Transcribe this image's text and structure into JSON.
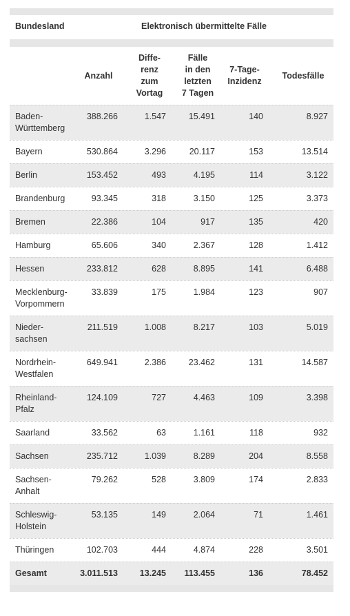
{
  "header": {
    "title_col": "Bundesland",
    "group": "Elektronisch übermittelte Fälle",
    "columns": [
      "Anzahl",
      "Diffe-\nrenz\nzum\nVortag",
      "Fälle\nin den\nletzten\n7 Tagen",
      "7-Tage-\nInzidenz",
      "Todesfälle"
    ]
  },
  "rows": [
    {
      "name": "Baden-\nWürttemberg",
      "values": [
        "388.266",
        "1.547",
        "15.491",
        "140",
        "8.927"
      ]
    },
    {
      "name": "Bayern",
      "values": [
        "530.864",
        "3.296",
        "20.117",
        "153",
        "13.514"
      ]
    },
    {
      "name": "Berlin",
      "values": [
        "153.452",
        "493",
        "4.195",
        "114",
        "3.122"
      ]
    },
    {
      "name": "Brandenburg",
      "values": [
        "93.345",
        "318",
        "3.150",
        "125",
        "3.373"
      ]
    },
    {
      "name": "Bremen",
      "values": [
        "22.386",
        "104",
        "917",
        "135",
        "420"
      ]
    },
    {
      "name": "Hamburg",
      "values": [
        "65.606",
        "340",
        "2.367",
        "128",
        "1.412"
      ]
    },
    {
      "name": "Hessen",
      "values": [
        "233.812",
        "628",
        "8.895",
        "141",
        "6.488"
      ]
    },
    {
      "name": "Mecklenburg-\nVorpommern",
      "values": [
        "33.839",
        "175",
        "1.984",
        "123",
        "907"
      ]
    },
    {
      "name": "Nieder-\nsachsen",
      "values": [
        "211.519",
        "1.008",
        "8.217",
        "103",
        "5.019"
      ]
    },
    {
      "name": "Nordrhein-\nWestfalen",
      "values": [
        "649.941",
        "2.386",
        "23.462",
        "131",
        "14.587"
      ]
    },
    {
      "name": "Rheinland-\nPfalz",
      "values": [
        "124.109",
        "727",
        "4.463",
        "109",
        "3.398"
      ]
    },
    {
      "name": "Saarland",
      "values": [
        "33.562",
        "63",
        "1.161",
        "118",
        "932"
      ]
    },
    {
      "name": "Sachsen",
      "values": [
        "235.712",
        "1.039",
        "8.289",
        "204",
        "8.558"
      ]
    },
    {
      "name": "Sachsen-\nAnhalt",
      "values": [
        "79.262",
        "528",
        "3.809",
        "174",
        "2.833"
      ]
    },
    {
      "name": "Schleswig-\nHolstein",
      "values": [
        "53.135",
        "149",
        "2.064",
        "71",
        "1.461"
      ]
    },
    {
      "name": "Thüringen",
      "values": [
        "102.703",
        "444",
        "4.874",
        "228",
        "3.501"
      ]
    }
  ],
  "total": {
    "name": "Gesamt",
    "values": [
      "3.011.513",
      "13.245",
      "113.455",
      "136",
      "78.452"
    ]
  }
}
